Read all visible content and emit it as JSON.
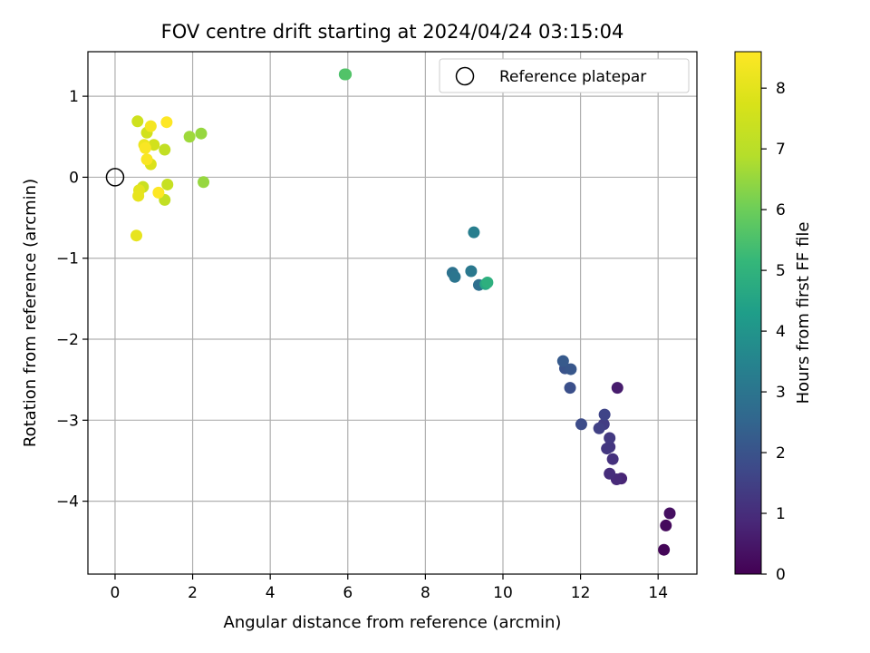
{
  "chart_data": {
    "type": "scatter",
    "title": "FOV centre drift starting at 2024/04/24 03:15:04",
    "xlabel": "Angular distance from reference (arcmin)",
    "ylabel": "Rotation from reference (arcmin)",
    "xlim": [
      -0.7,
      15.0
    ],
    "ylim": [
      -4.9,
      1.55
    ],
    "xticks": [
      0,
      2,
      4,
      6,
      8,
      10,
      12,
      14
    ],
    "yticks": [
      1,
      0,
      -1,
      -2,
      -3,
      -4
    ],
    "grid": true,
    "legend": {
      "placement": "top-right",
      "label": "Reference platepar"
    },
    "reference_point": {
      "x": 0,
      "y": 0
    },
    "colorbar": {
      "label": "Hours from first FF file",
      "min": 0,
      "max": 8.6,
      "ticks": [
        0,
        1,
        2,
        3,
        4,
        5,
        6,
        7,
        8
      ],
      "colormap": "viridis"
    },
    "series": [
      {
        "points": [
          {
            "x": 14.15,
            "y": -4.6,
            "c": 0.1
          },
          {
            "x": 14.2,
            "y": -4.3,
            "c": 0.2
          },
          {
            "x": 14.3,
            "y": -4.15,
            "c": 0.3
          },
          {
            "x": 12.95,
            "y": -2.6,
            "c": 0.6
          },
          {
            "x": 13.05,
            "y": -3.72,
            "c": 0.8
          },
          {
            "x": 12.93,
            "y": -3.73,
            "c": 0.9
          },
          {
            "x": 12.75,
            "y": -3.66,
            "c": 1.0
          },
          {
            "x": 12.83,
            "y": -3.48,
            "c": 1.1
          },
          {
            "x": 12.75,
            "y": -3.33,
            "c": 1.2
          },
          {
            "x": 12.68,
            "y": -3.35,
            "c": 1.25
          },
          {
            "x": 12.75,
            "y": -3.22,
            "c": 1.3
          },
          {
            "x": 12.6,
            "y": -3.05,
            "c": 1.4
          },
          {
            "x": 12.48,
            "y": -3.1,
            "c": 1.5
          },
          {
            "x": 12.62,
            "y": -2.93,
            "c": 1.6
          },
          {
            "x": 12.02,
            "y": -3.05,
            "c": 1.8
          },
          {
            "x": 11.73,
            "y": -2.6,
            "c": 1.9
          },
          {
            "x": 11.6,
            "y": -2.36,
            "c": 2.0
          },
          {
            "x": 11.75,
            "y": -2.37,
            "c": 2.1
          },
          {
            "x": 11.55,
            "y": -2.27,
            "c": 2.2
          },
          {
            "x": 9.38,
            "y": -1.33,
            "c": 2.8
          },
          {
            "x": 8.7,
            "y": -1.18,
            "c": 2.9
          },
          {
            "x": 8.76,
            "y": -1.23,
            "c": 3.0
          },
          {
            "x": 9.18,
            "y": -1.16,
            "c": 3.1
          },
          {
            "x": 9.25,
            "y": -0.68,
            "c": 3.3
          },
          {
            "x": 9.55,
            "y": -1.32,
            "c": 4.6
          },
          {
            "x": 9.6,
            "y": -1.3,
            "c": 4.9
          },
          {
            "x": 5.92,
            "y": 1.27,
            "c": 5.5
          },
          {
            "x": 5.95,
            "y": 1.27,
            "c": 5.6
          },
          {
            "x": 2.22,
            "y": 0.54,
            "c": 6.5
          },
          {
            "x": 2.28,
            "y": -0.06,
            "c": 6.5
          },
          {
            "x": 1.92,
            "y": 0.5,
            "c": 6.6
          },
          {
            "x": 1.28,
            "y": 0.34,
            "c": 7.2
          },
          {
            "x": 1.35,
            "y": -0.09,
            "c": 7.3
          },
          {
            "x": 1.28,
            "y": -0.28,
            "c": 7.2
          },
          {
            "x": 0.58,
            "y": 0.69,
            "c": 7.5
          },
          {
            "x": 0.72,
            "y": -0.12,
            "c": 7.4
          },
          {
            "x": 0.82,
            "y": 0.55,
            "c": 7.6
          },
          {
            "x": 1.0,
            "y": 0.4,
            "c": 7.6
          },
          {
            "x": 0.92,
            "y": 0.16,
            "c": 7.8
          },
          {
            "x": 0.62,
            "y": -0.16,
            "c": 8.0
          },
          {
            "x": 0.6,
            "y": -0.23,
            "c": 8.1
          },
          {
            "x": 0.55,
            "y": -0.72,
            "c": 8.1
          },
          {
            "x": 0.75,
            "y": 0.4,
            "c": 8.2
          },
          {
            "x": 0.92,
            "y": 0.63,
            "c": 8.4
          },
          {
            "x": 0.78,
            "y": 0.36,
            "c": 8.5
          },
          {
            "x": 0.82,
            "y": 0.22,
            "c": 8.5
          },
          {
            "x": 1.12,
            "y": -0.19,
            "c": 8.6
          },
          {
            "x": 1.33,
            "y": 0.68,
            "c": 8.6
          }
        ]
      }
    ]
  }
}
